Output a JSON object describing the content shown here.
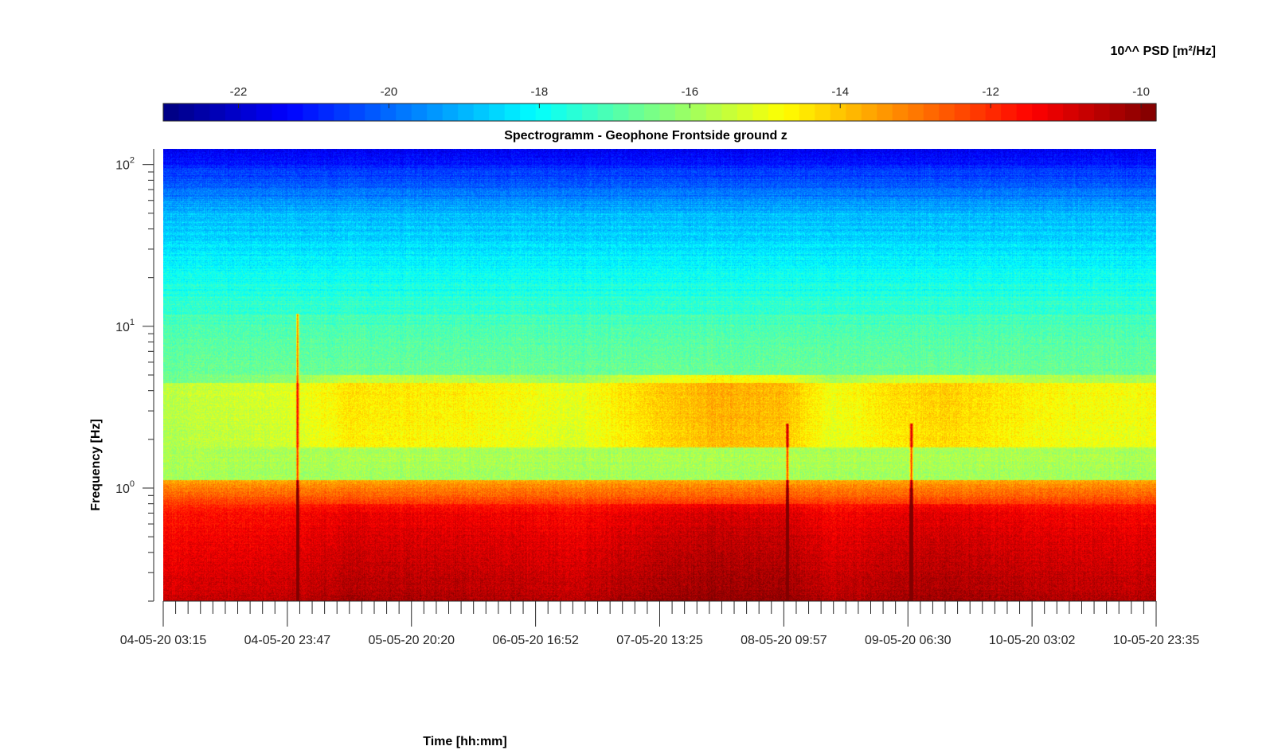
{
  "chart_data": {
    "type": "heatmap",
    "title": "Spectrogramm - Geophone Frontside ground z",
    "xlabel": "Time [hh:mm]",
    "ylabel": "Frequency [Hz]",
    "yscale": "log",
    "ylim": [
      0.2,
      125
    ],
    "y_ticks": [
      {
        "value": 1,
        "base": "10",
        "exp": "0"
      },
      {
        "value": 10,
        "base": "10",
        "exp": "1"
      },
      {
        "value": 100,
        "base": "10",
        "exp": "2"
      }
    ],
    "x_tick_labels": [
      "04-05-20 03:15",
      "04-05-20 23:47",
      "05-05-20 20:20",
      "06-05-20 16:52",
      "07-05-20 13:25",
      "08-05-20 09:57",
      "09-05-20 06:30",
      "10-05-20 03:02",
      "10-05-20 23:35"
    ],
    "x_minor_per_major": 10,
    "colorbar": {
      "label": "10^^ PSD [m²/Hz]",
      "ticks": [
        -22,
        -20,
        -18,
        -16,
        -14,
        -12,
        -10
      ],
      "range": [
        -23.0,
        -9.8
      ],
      "colormap": "jet",
      "placement": "top"
    },
    "spikes": [
      {
        "time_index": 1.08,
        "reach_hz": 12
      },
      {
        "time_index": 5.03,
        "reach_hz": 2.5
      },
      {
        "time_index": 6.03,
        "reach_hz": 2.5
      }
    ]
  }
}
